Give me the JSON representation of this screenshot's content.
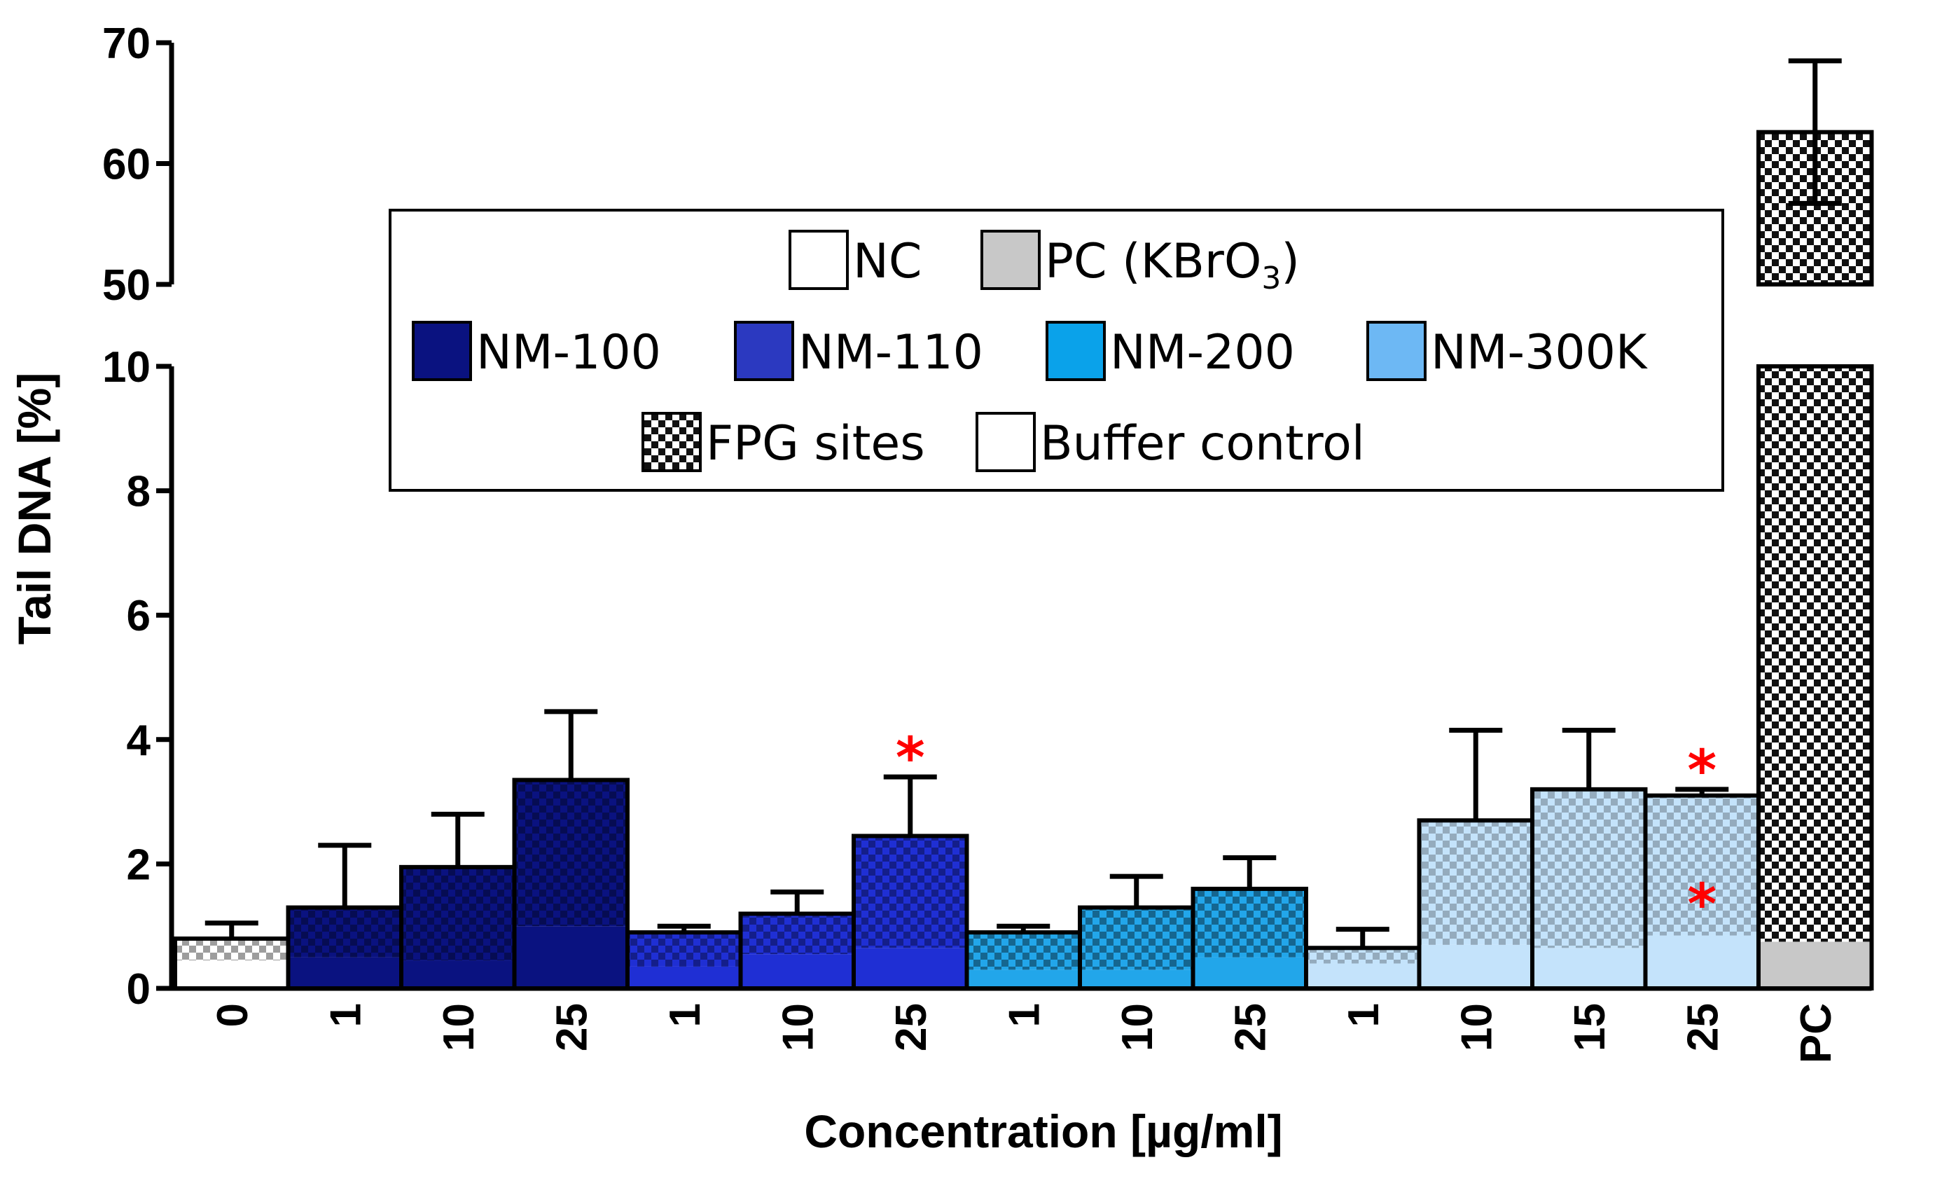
{
  "chart_data": {
    "type": "bar",
    "stacked": true,
    "broken_y_axis": true,
    "ylabel": "Tail DNA [%]",
    "xlabel": "Concentration [µg/ml]",
    "ylim_lower": [
      0,
      10
    ],
    "ylim_upper": [
      50,
      70
    ],
    "yticks_lower": [
      "0",
      "2",
      "4",
      "6",
      "8",
      "10"
    ],
    "yticks_upper": [
      "50",
      "60",
      "70"
    ],
    "categories": [
      "0",
      "1",
      "10",
      "25",
      "1",
      "10",
      "25",
      "1",
      "10",
      "25",
      "1",
      "10",
      "15",
      "25",
      "PC"
    ],
    "groups": [
      "NC",
      "NM-100",
      "NM-100",
      "NM-100",
      "NM-110",
      "NM-110",
      "NM-110",
      "NM-200",
      "NM-200",
      "NM-200",
      "NM-300K",
      "NM-300K",
      "NM-300K",
      "NM-300K",
      "PC (KBrO3)"
    ],
    "series": [
      {
        "name": "Buffer control",
        "values": [
          0.45,
          0.5,
          0.45,
          1.0,
          0.35,
          0.55,
          0.65,
          0.3,
          0.3,
          0.5,
          0.4,
          0.7,
          0.65,
          0.85,
          0.75
        ]
      },
      {
        "name": "FPG sites",
        "values": [
          0.35,
          0.8,
          1.5,
          2.35,
          0.55,
          0.65,
          1.8,
          0.6,
          1.0,
          1.1,
          0.25,
          2.0,
          2.55,
          2.25,
          61.85
        ]
      }
    ],
    "totals": [
      0.8,
      1.3,
      1.95,
      3.35,
      0.9,
      1.2,
      2.45,
      0.9,
      1.3,
      1.6,
      0.65,
      2.7,
      3.2,
      3.1,
      62.6
    ],
    "error_bars": [
      1.05,
      2.3,
      2.8,
      4.45,
      1.0,
      1.55,
      3.4,
      1.0,
      1.8,
      2.1,
      0.95,
      4.15,
      4.15,
      3.2,
      68.5
    ],
    "error_bars_lower": [
      null,
      null,
      null,
      null,
      null,
      null,
      null,
      null,
      null,
      null,
      null,
      null,
      null,
      null,
      56.7
    ],
    "significance": [
      {
        "category_index": 6,
        "label": "*",
        "y": 3.9
      },
      {
        "category_index": 13,
        "label": "*",
        "y": 3.7
      },
      {
        "category_index": 13,
        "label": "*",
        "y": 1.55
      }
    ],
    "colors": {
      "NC": "#ffffff",
      "PC (KBrO3)": "#c8c8c8",
      "NM-100": "#0a1280",
      "NM-110": "#1f2fd4",
      "NM-200": "#22a6ea",
      "NM-300K": "#c4e3fb",
      "significance": "#ff0000"
    },
    "legend": {
      "position": "upper-center",
      "entries": [
        {
          "label": "NC",
          "color": "#ffffff",
          "pattern": "solid"
        },
        {
          "label": "PC (KBrO",
          "sub": "3",
          "tail": ")",
          "color": "#c8c8c8",
          "pattern": "solid"
        },
        {
          "label": "NM-100",
          "color": "#0a1280",
          "pattern": "solid"
        },
        {
          "label": "NM-110",
          "color": "#2b39c0",
          "pattern": "solid"
        },
        {
          "label": "NM-200",
          "color": "#0aa2ea",
          "pattern": "solid"
        },
        {
          "label": "NM-300K",
          "color": "#6db8f4",
          "pattern": "solid"
        },
        {
          "label": "FPG sites",
          "color": "#ffffff",
          "pattern": "checker"
        },
        {
          "label": "Buffer control",
          "color": "#ffffff",
          "pattern": "solid"
        }
      ]
    }
  }
}
